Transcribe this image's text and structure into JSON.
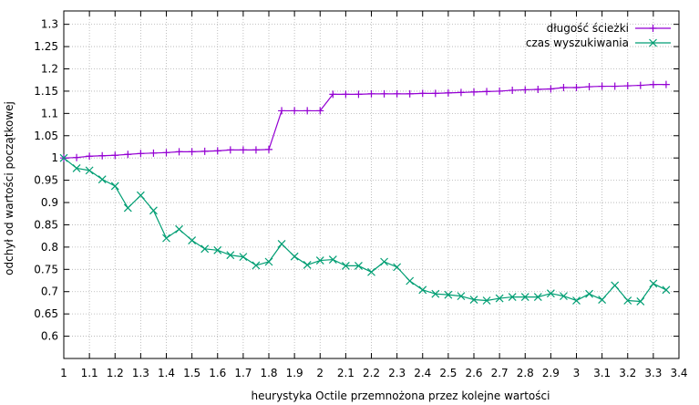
{
  "chart_data": {
    "type": "line",
    "title": "",
    "xlabel": "heurystyka Octile przemnożona przez kolejne wartości",
    "ylabel": "odchył od wartości początkowej",
    "xlim": [
      1,
      3.4
    ],
    "ylim": [
      0.55,
      1.33
    ],
    "x_ticks": [
      "1",
      "1.1",
      "1.2",
      "1.3",
      "1.4",
      "1.5",
      "1.6",
      "1.7",
      "1.8",
      "1.9",
      "2",
      "2.1",
      "2.2",
      "2.3",
      "2.4",
      "2.5",
      "2.6",
      "2.7",
      "2.8",
      "2.9",
      "3",
      "3.1",
      "3.2",
      "3.3",
      "3.4"
    ],
    "y_ticks": [
      "0.6",
      "0.65",
      "0.7",
      "0.75",
      "0.8",
      "0.85",
      "0.9",
      "0.95",
      "1",
      "1.05",
      "1.1",
      "1.15",
      "1.2",
      "1.25",
      "1.3"
    ],
    "grid": true,
    "legend_position": "top-right",
    "series": [
      {
        "name": "długość ścieżki",
        "color": "#9400d3",
        "marker": "plus",
        "x": [
          1,
          1.05,
          1.1,
          1.15,
          1.2,
          1.25,
          1.3,
          1.35,
          1.4,
          1.45,
          1.5,
          1.55,
          1.6,
          1.65,
          1.7,
          1.75,
          1.8,
          1.85,
          1.9,
          1.95,
          2,
          2.05,
          2.1,
          2.15,
          2.2,
          2.25,
          2.3,
          2.35,
          2.4,
          2.45,
          2.5,
          2.55,
          2.6,
          2.65,
          2.7,
          2.75,
          2.8,
          2.85,
          2.9,
          2.95,
          3,
          3.05,
          3.1,
          3.15,
          3.2,
          3.25,
          3.3,
          3.35
        ],
        "y": [
          1,
          1.001,
          1.004,
          1.005,
          1.006,
          1.008,
          1.01,
          1.011,
          1.012,
          1.014,
          1.014,
          1.015,
          1.016,
          1.018,
          1.018,
          1.018,
          1.019,
          1.106,
          1.106,
          1.106,
          1.106,
          1.143,
          1.143,
          1.143,
          1.144,
          1.144,
          1.144,
          1.144,
          1.145,
          1.145,
          1.146,
          1.147,
          1.148,
          1.149,
          1.15,
          1.152,
          1.153,
          1.154,
          1.155,
          1.158,
          1.158,
          1.16,
          1.161,
          1.161,
          1.162,
          1.163,
          1.165,
          1.165
        ]
      },
      {
        "name": "czas wyszukiwania",
        "color": "#009e73",
        "marker": "cross",
        "x": [
          1,
          1.05,
          1.1,
          1.15,
          1.2,
          1.25,
          1.3,
          1.35,
          1.4,
          1.45,
          1.5,
          1.55,
          1.6,
          1.65,
          1.7,
          1.75,
          1.8,
          1.85,
          1.9,
          1.95,
          2,
          2.05,
          2.1,
          2.15,
          2.2,
          2.25,
          2.3,
          2.35,
          2.4,
          2.45,
          2.5,
          2.55,
          2.6,
          2.65,
          2.7,
          2.75,
          2.8,
          2.85,
          2.9,
          2.95,
          3,
          3.05,
          3.1,
          3.15,
          3.2,
          3.25,
          3.3,
          3.35
        ],
        "y": [
          1,
          0.977,
          0.972,
          0.952,
          0.937,
          0.888,
          0.916,
          0.882,
          0.82,
          0.84,
          0.815,
          0.796,
          0.793,
          0.782,
          0.778,
          0.759,
          0.767,
          0.807,
          0.779,
          0.76,
          0.77,
          0.772,
          0.758,
          0.758,
          0.744,
          0.767,
          0.755,
          0.724,
          0.704,
          0.695,
          0.693,
          0.69,
          0.682,
          0.68,
          0.685,
          0.688,
          0.688,
          0.688,
          0.696,
          0.69,
          0.68,
          0.695,
          0.682,
          0.714,
          0.68,
          0.678,
          0.718,
          0.704
        ]
      }
    ]
  }
}
